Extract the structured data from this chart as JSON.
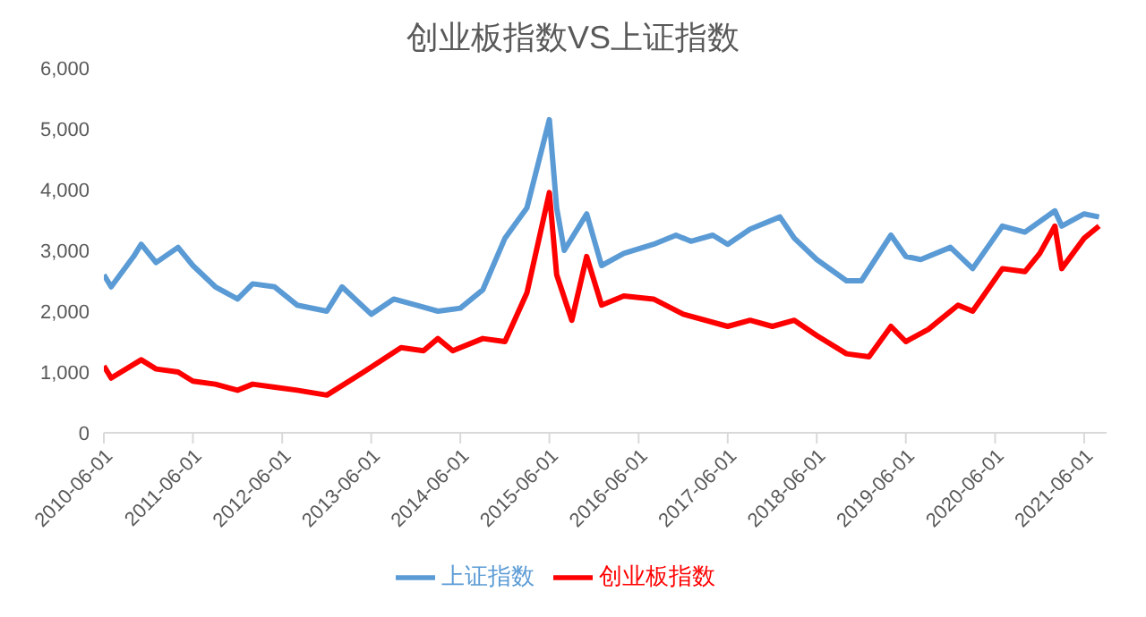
{
  "chart_data": {
    "type": "line",
    "title": "创业板指数VS上证指数",
    "legend": "bottom",
    "grid": false,
    "marker": "none",
    "line_style": "solid",
    "xlim": [
      "2010-06-01",
      "2021-09-01"
    ],
    "xticks": [
      "2010-06-01",
      "2011-06-01",
      "2012-06-01",
      "2013-06-01",
      "2014-06-01",
      "2015-06-01",
      "2016-06-01",
      "2017-06-01",
      "2018-06-01",
      "2019-06-01",
      "2020-06-01",
      "2021-06-01"
    ],
    "ylim": [
      0,
      6000
    ],
    "yticks": [
      {
        "value": 0,
        "label": "0"
      },
      {
        "value": 1000,
        "label": "1,000"
      },
      {
        "value": 2000,
        "label": "2,000"
      },
      {
        "value": 3000,
        "label": "3,000"
      },
      {
        "value": 4000,
        "label": "4,000"
      },
      {
        "value": 5000,
        "label": "5,000"
      },
      {
        "value": 6000,
        "label": "6,000"
      }
    ],
    "series": [
      {
        "name": "创业板指数",
        "color": "#ff0000",
        "x": [
          "2010-06",
          "2010-07",
          "2010-11",
          "2011-01",
          "2011-04",
          "2011-06",
          "2011-09",
          "2011-12",
          "2012-02",
          "2012-05",
          "2012-08",
          "2012-12",
          "2013-05",
          "2013-10",
          "2014-01",
          "2014-03",
          "2014-05",
          "2014-09",
          "2014-12",
          "2015-03",
          "2015-06",
          "2015-07",
          "2015-09",
          "2015-11",
          "2016-01",
          "2016-04",
          "2016-08",
          "2016-12",
          "2017-06",
          "2017-09",
          "2017-12",
          "2018-03",
          "2018-06",
          "2018-10",
          "2019-01",
          "2019-04",
          "2019-06",
          "2019-09",
          "2020-01",
          "2020-03",
          "2020-07",
          "2020-10",
          "2020-12",
          "2021-02",
          "2021-03",
          "2021-06",
          "2021-08"
        ],
        "values": [
          1100,
          900,
          1200,
          1050,
          1000,
          850,
          800,
          700,
          800,
          750,
          700,
          620,
          1000,
          1400,
          1350,
          1550,
          1350,
          1550,
          1500,
          2300,
          3950,
          2600,
          1850,
          2900,
          2100,
          2250,
          2200,
          1950,
          1750,
          1850,
          1750,
          1850,
          1600,
          1300,
          1250,
          1750,
          1500,
          1700,
          2100,
          2000,
          2700,
          2650,
          2950,
          3400,
          2700,
          3200,
          3400
        ]
      },
      {
        "name": "上证指数",
        "color": "#5b9bd5",
        "x": [
          "2010-06",
          "2010-07",
          "2010-10",
          "2010-11",
          "2011-01",
          "2011-04",
          "2011-06",
          "2011-09",
          "2011-12",
          "2012-02",
          "2012-05",
          "2012-08",
          "2012-12",
          "2013-02",
          "2013-06",
          "2013-09",
          "2013-12",
          "2014-03",
          "2014-06",
          "2014-09",
          "2014-12",
          "2015-03",
          "2015-06",
          "2015-07",
          "2015-08",
          "2015-11",
          "2016-01",
          "2016-04",
          "2016-08",
          "2016-11",
          "2017-01",
          "2017-04",
          "2017-06",
          "2017-09",
          "2018-01",
          "2018-03",
          "2018-06",
          "2018-10",
          "2018-12",
          "2019-04",
          "2019-06",
          "2019-08",
          "2019-12",
          "2020-03",
          "2020-07",
          "2020-10",
          "2021-02",
          "2021-03",
          "2021-06",
          "2021-08"
        ],
        "values": [
          2600,
          2400,
          2900,
          3100,
          2800,
          3050,
          2750,
          2400,
          2200,
          2450,
          2400,
          2100,
          2000,
          2400,
          1950,
          2200,
          2100,
          2000,
          2050,
          2350,
          3200,
          3700,
          5150,
          3700,
          3000,
          3600,
          2750,
          2950,
          3100,
          3250,
          3150,
          3250,
          3100,
          3350,
          3550,
          3200,
          2850,
          2500,
          2500,
          3250,
          2900,
          2850,
          3050,
          2700,
          3400,
          3300,
          3650,
          3400,
          3600,
          3550
        ]
      }
    ]
  }
}
